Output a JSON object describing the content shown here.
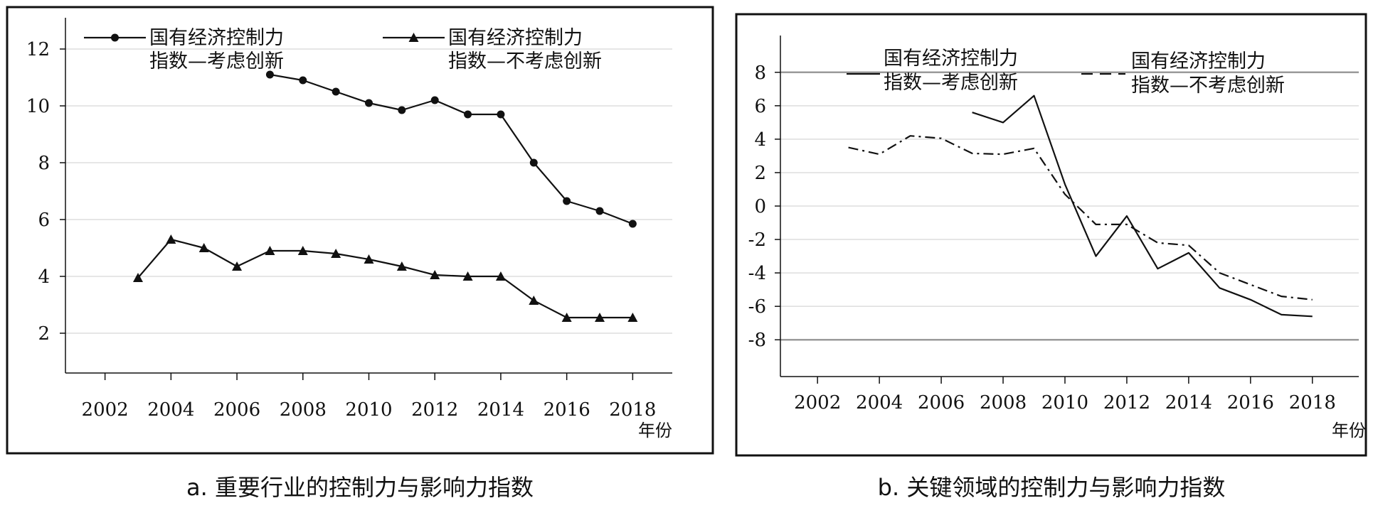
{
  "chart_data": [
    {
      "type": "line",
      "caption": "a. 重要行业的控制力与影响力指数",
      "x_unit": "年份",
      "x_ticks": [
        2002,
        2004,
        2006,
        2008,
        2010,
        2012,
        2014,
        2016,
        2018
      ],
      "y_ticks": [
        2,
        4,
        6,
        8,
        10,
        12
      ],
      "xlim": [
        2000.8,
        2019.2
      ],
      "ylim": [
        0.6,
        13.1
      ],
      "grid": true,
      "legend_position": "top",
      "series": [
        {
          "name": "国有经济控制力\n指数—考虑创新",
          "marker": "circle",
          "style": "solid",
          "x": [
            2007,
            2008,
            2009,
            2010,
            2011,
            2012,
            2013,
            2014,
            2015,
            2016,
            2017,
            2018
          ],
          "values": [
            11.1,
            10.9,
            10.5,
            10.1,
            9.85,
            10.2,
            9.7,
            9.7,
            8.0,
            6.65,
            6.3,
            5.85
          ]
        },
        {
          "name": "国有经济控制力\n指数—不考虑创新",
          "marker": "triangle",
          "style": "solid",
          "x": [
            2003,
            2004,
            2005,
            2006,
            2007,
            2008,
            2009,
            2010,
            2011,
            2012,
            2013,
            2014,
            2015,
            2016,
            2017,
            2018
          ],
          "values": [
            3.95,
            5.3,
            5.0,
            4.35,
            4.9,
            4.9,
            4.8,
            4.6,
            4.35,
            4.05,
            4.0,
            4.0,
            3.15,
            2.55,
            2.55,
            2.55
          ]
        }
      ]
    },
    {
      "type": "line",
      "caption": "b. 关键领域的控制力与影响力指数",
      "x_unit": "年份",
      "x_ticks": [
        2002,
        2004,
        2006,
        2008,
        2010,
        2012,
        2014,
        2016,
        2018
      ],
      "y_ticks": [
        -8,
        -6,
        -4,
        -2,
        0,
        2,
        4,
        6,
        8
      ],
      "xlim": [
        2000.8,
        2019.5
      ],
      "ylim": [
        -10.2,
        10.2
      ],
      "grid": true,
      "legend_position": "top",
      "series": [
        {
          "name": "国有经济控制力\n指数—考虑创新",
          "marker": "none",
          "style": "solid",
          "x": [
            2007,
            2008,
            2009,
            2010,
            2011,
            2012,
            2013,
            2014,
            2015,
            2016,
            2017,
            2018
          ],
          "values": [
            5.6,
            5.0,
            6.6,
            1.3,
            -3.0,
            -0.6,
            -3.75,
            -2.8,
            -4.9,
            -5.6,
            -6.5,
            -6.6
          ]
        },
        {
          "name": "国有经济控制力\n指数—不考虑创新",
          "marker": "none",
          "style": "dashdot",
          "x": [
            2003,
            2004,
            2005,
            2006,
            2007,
            2008,
            2009,
            2010,
            2011,
            2012,
            2013,
            2014,
            2015,
            2016,
            2017,
            2018
          ],
          "values": [
            3.5,
            3.1,
            4.2,
            4.05,
            3.15,
            3.1,
            3.45,
            0.7,
            -1.1,
            -1.1,
            -2.2,
            -2.35,
            -4.0,
            -4.7,
            -5.4,
            -5.6
          ]
        }
      ]
    }
  ]
}
